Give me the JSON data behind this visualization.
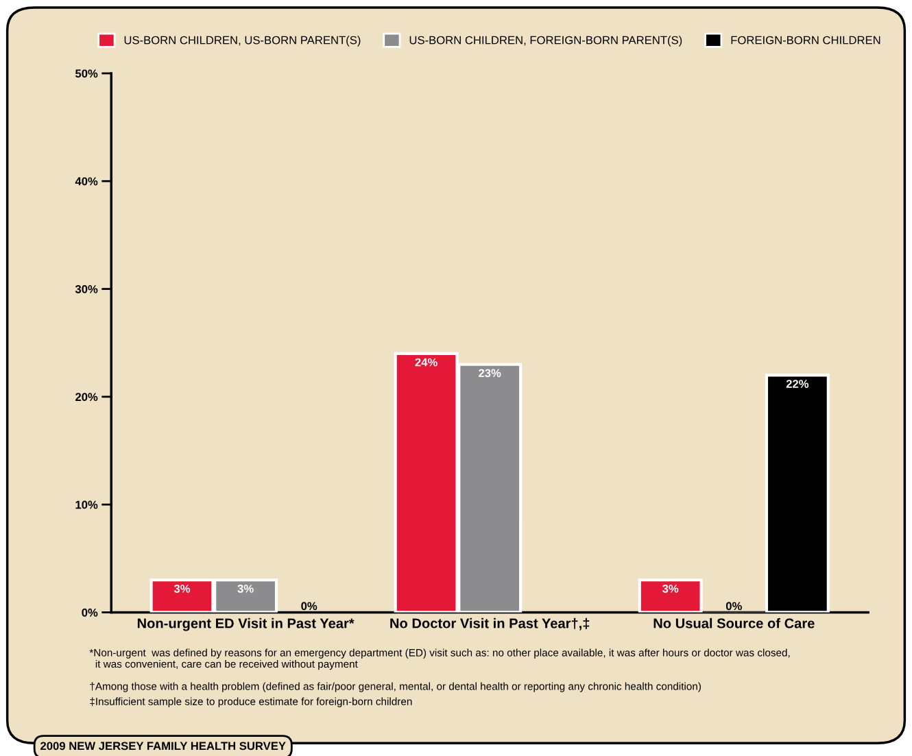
{
  "chart_data": {
    "type": "bar",
    "categories": [
      "Non-urgent ED Visit in Past Year*",
      "No Doctor Visit in Past Year†,‡",
      "No Usual Source of Care"
    ],
    "series": [
      {
        "name": "US-BORN CHILDREN, US-BORN PARENT(S)",
        "color": "#e31937",
        "values": [
          3,
          24,
          3
        ],
        "value_labels": [
          "3%",
          "24%",
          "3%"
        ]
      },
      {
        "name": "US-BORN CHILDREN, FOREIGN-BORN PARENT(S)",
        "color": "#8c8c8e",
        "values": [
          3,
          23,
          0
        ],
        "value_labels": [
          "3%",
          "23%",
          "0%"
        ]
      },
      {
        "name": "FOREIGN-BORN CHILDREN",
        "color": "#000000",
        "values": [
          0,
          null,
          22
        ],
        "value_labels": [
          "0%",
          null,
          "22%"
        ]
      }
    ],
    "ylim": [
      0,
      50
    ],
    "yticks": [
      {
        "value": 0,
        "label": "0%"
      },
      {
        "value": 10,
        "label": "10%"
      },
      {
        "value": 20,
        "label": "20%"
      },
      {
        "value": 30,
        "label": "30%"
      },
      {
        "value": 40,
        "label": "40%"
      },
      {
        "value": 50,
        "label": "50%"
      }
    ],
    "legend": "top",
    "grid": false,
    "annotations": [
      "*Non-urgent  was defined by reasons for an emergency department (ED) visit such as: no other place available, it was after hours or doctor was closed,\n  it was convenient, care can be received without payment",
      "†Among those with a health problem (defined as fair/poor general, mental, or dental health or reporting any chronic health condition)",
      "‡Insufficient sample size to produce estimate for foreign-born children",
      "2009 NEW JERSEY FAMILY HEALTH SURVEY"
    ]
  }
}
